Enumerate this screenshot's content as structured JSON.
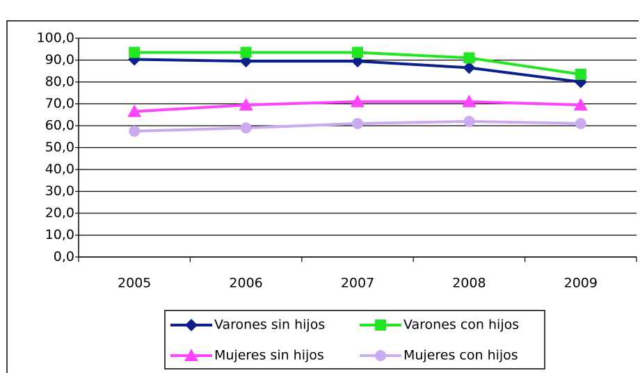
{
  "chart_data": {
    "type": "line",
    "categories": [
      "2005",
      "2006",
      "2007",
      "2008",
      "2009"
    ],
    "series": [
      {
        "name": "Varones sin hijos",
        "color": "#0d1f8a",
        "marker": "diamond",
        "values": [
          90.3,
          89.5,
          89.5,
          86.5,
          80.0
        ]
      },
      {
        "name": "Varones con hijos",
        "color": "#22e622",
        "marker": "square",
        "values": [
          93.5,
          93.5,
          93.5,
          91.0,
          83.5
        ]
      },
      {
        "name": "Mujeres sin hijos",
        "color": "#ff44ff",
        "marker": "triangle",
        "values": [
          66.5,
          69.5,
          71.0,
          71.0,
          69.5
        ]
      },
      {
        "name": "Mujeres con hijos",
        "color": "#ccaaee",
        "marker": "circle",
        "values": [
          57.5,
          59.0,
          61.0,
          62.0,
          61.0
        ]
      }
    ],
    "ylim": [
      0,
      100
    ],
    "yticks": [
      {
        "value": 0,
        "label": "0,0"
      },
      {
        "value": 10,
        "label": "10,0"
      },
      {
        "value": 20,
        "label": "20,0"
      },
      {
        "value": 30,
        "label": "30,0"
      },
      {
        "value": 40,
        "label": "40,0"
      },
      {
        "value": 50,
        "label": "50,0"
      },
      {
        "value": 60,
        "label": "60,0"
      },
      {
        "value": 70,
        "label": "70,0"
      },
      {
        "value": 80,
        "label": "80,0"
      },
      {
        "value": 90,
        "label": "90,0"
      },
      {
        "value": 100,
        "label": "100,0"
      }
    ],
    "grid": true,
    "legend": "bottom"
  }
}
